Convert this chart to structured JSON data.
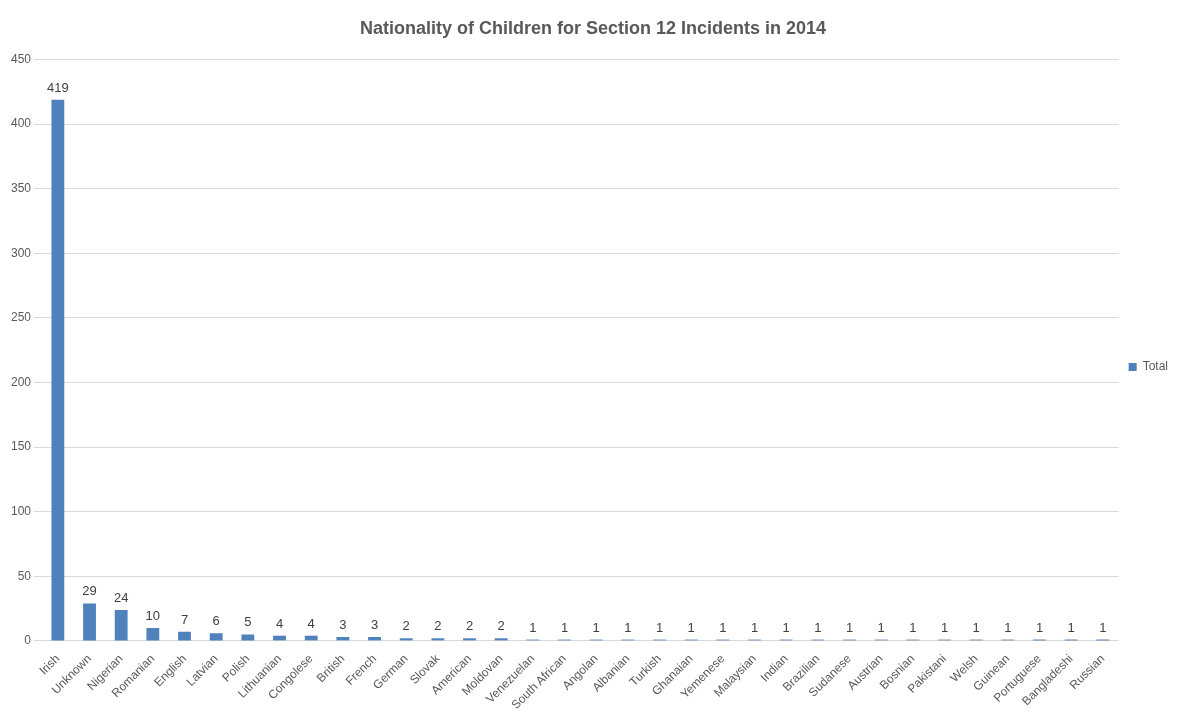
{
  "chart_data": {
    "type": "bar",
    "title": "Nationality of Children for Section 12 Incidents in 2014",
    "categories": [
      "Irish",
      "Unknown",
      "Nigerian",
      "Romanian",
      "English",
      "Latvian",
      "Polish",
      "Lithuanian",
      "Congolese",
      "British",
      "French",
      "German",
      "Slovak",
      "American",
      "Moldovan",
      "Venezuelan",
      "South African",
      "Angolan",
      "Albanian",
      "Turkish",
      "Ghanaian",
      "Yemenese",
      "Malaysian",
      "Indian",
      "Brazilian",
      "Sudanese",
      "Austrian",
      "Bosnian",
      "Pakistani",
      "Welsh",
      "Guinean",
      "Portuguese",
      "Bangladeshi",
      "Russian"
    ],
    "series": [
      {
        "name": "Total",
        "color": "#4f81bd",
        "values": [
          419,
          29,
          24,
          10,
          7,
          6,
          5,
          4,
          4,
          3,
          3,
          2,
          2,
          2,
          2,
          1,
          1,
          1,
          1,
          1,
          1,
          1,
          1,
          1,
          1,
          1,
          1,
          1,
          1,
          1,
          1,
          1,
          1,
          1
        ]
      }
    ],
    "ylim": [
      0,
      450
    ],
    "yticks": [
      0,
      50,
      100,
      150,
      200,
      250,
      300,
      350,
      400,
      450
    ],
    "grid": "y",
    "legend": "right",
    "data_labels": true
  }
}
